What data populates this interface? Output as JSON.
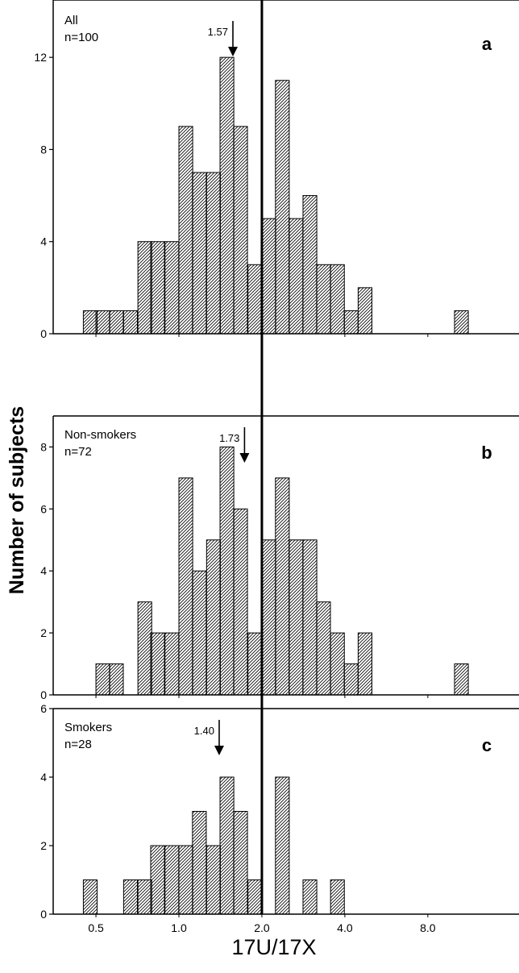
{
  "figure": {
    "ylabel": "Number of subjects",
    "xlabel": "17U/17X",
    "x_tick_labels": [
      "0.5",
      "1.0",
      "2.0",
      "4.0",
      "8.0"
    ],
    "x_tick_values": [
      0.5,
      1.0,
      2.0,
      4.0,
      8.0
    ],
    "vertical_reference_line": 2.0
  },
  "chart_data": [
    {
      "type": "bar",
      "panel_letter": "a",
      "legend_lines": [
        "All",
        "n=100"
      ],
      "arrow": {
        "value": 1.57,
        "label": "1.57"
      },
      "ylim": [
        0,
        14
      ],
      "yticks": [
        0,
        4,
        8,
        12
      ],
      "x_log_scale": true,
      "bins": [
        {
          "x": 0.45,
          "count": 1
        },
        {
          "x": 0.5,
          "count": 1
        },
        {
          "x": 0.56,
          "count": 1
        },
        {
          "x": 0.63,
          "count": 1
        },
        {
          "x": 0.71,
          "count": 4
        },
        {
          "x": 0.79,
          "count": 4
        },
        {
          "x": 0.89,
          "count": 4
        },
        {
          "x": 1.0,
          "count": 9
        },
        {
          "x": 1.12,
          "count": 7
        },
        {
          "x": 1.26,
          "count": 7
        },
        {
          "x": 1.41,
          "count": 12
        },
        {
          "x": 1.58,
          "count": 9
        },
        {
          "x": 1.78,
          "count": 3
        },
        {
          "x": 2.0,
          "count": 5
        },
        {
          "x": 2.24,
          "count": 11
        },
        {
          "x": 2.51,
          "count": 5
        },
        {
          "x": 2.82,
          "count": 6
        },
        {
          "x": 3.16,
          "count": 3
        },
        {
          "x": 3.55,
          "count": 3
        },
        {
          "x": 3.98,
          "count": 1
        },
        {
          "x": 4.47,
          "count": 2
        },
        {
          "x": 10.0,
          "count": 1
        }
      ]
    },
    {
      "type": "bar",
      "panel_letter": "b",
      "legend_lines": [
        "Non-smokers",
        "n=72"
      ],
      "arrow": {
        "value": 1.73,
        "label": "1.73"
      },
      "ylim": [
        0,
        9
      ],
      "yticks": [
        0,
        2,
        4,
        6,
        8
      ],
      "x_log_scale": true,
      "bins": [
        {
          "x": 0.5,
          "count": 1
        },
        {
          "x": 0.56,
          "count": 1
        },
        {
          "x": 0.71,
          "count": 3
        },
        {
          "x": 0.79,
          "count": 2
        },
        {
          "x": 0.89,
          "count": 2
        },
        {
          "x": 1.0,
          "count": 7
        },
        {
          "x": 1.12,
          "count": 4
        },
        {
          "x": 1.26,
          "count": 5
        },
        {
          "x": 1.41,
          "count": 8
        },
        {
          "x": 1.58,
          "count": 6
        },
        {
          "x": 1.78,
          "count": 2
        },
        {
          "x": 2.0,
          "count": 5
        },
        {
          "x": 2.24,
          "count": 7
        },
        {
          "x": 2.51,
          "count": 5
        },
        {
          "x": 2.82,
          "count": 5
        },
        {
          "x": 3.16,
          "count": 3
        },
        {
          "x": 3.55,
          "count": 2
        },
        {
          "x": 3.98,
          "count": 1
        },
        {
          "x": 4.47,
          "count": 2
        },
        {
          "x": 10.0,
          "count": 1
        }
      ]
    },
    {
      "type": "bar",
      "panel_letter": "c",
      "legend_lines": [
        "Smokers",
        "n=28"
      ],
      "arrow": {
        "value": 1.4,
        "label": "1.40"
      },
      "ylim": [
        0,
        6
      ],
      "yticks": [
        0,
        2,
        4,
        6
      ],
      "x_log_scale": true,
      "bins": [
        {
          "x": 0.45,
          "count": 1
        },
        {
          "x": 0.63,
          "count": 1
        },
        {
          "x": 0.71,
          "count": 1
        },
        {
          "x": 0.79,
          "count": 2
        },
        {
          "x": 0.89,
          "count": 2
        },
        {
          "x": 1.0,
          "count": 2
        },
        {
          "x": 1.12,
          "count": 3
        },
        {
          "x": 1.26,
          "count": 2
        },
        {
          "x": 1.41,
          "count": 4
        },
        {
          "x": 1.58,
          "count": 3
        },
        {
          "x": 1.78,
          "count": 1
        },
        {
          "x": 2.24,
          "count": 4
        },
        {
          "x": 2.82,
          "count": 1
        },
        {
          "x": 3.55,
          "count": 1
        }
      ]
    }
  ]
}
